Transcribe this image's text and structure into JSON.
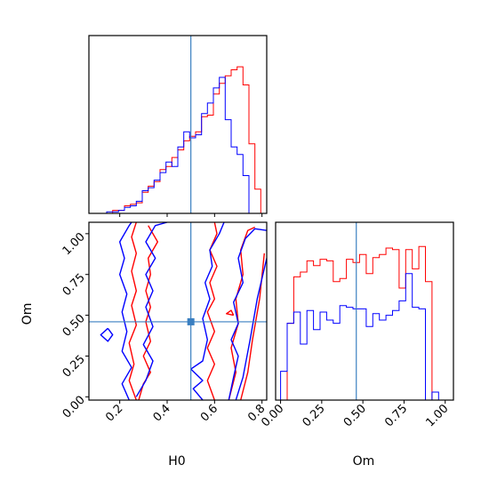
{
  "chart_data": {
    "type": "corner",
    "parameters": [
      "H0",
      "Om"
    ],
    "truth": {
      "H0": 0.5,
      "Om": 0.46
    },
    "colors": {
      "series_a": "#ff0000",
      "series_b": "#0000ff",
      "truth": "#3a7fc1"
    },
    "panels": [
      {
        "id": "hist-H0",
        "type": "step-histogram",
        "xlim": [
          0.07,
          0.82
        ],
        "bin_edges": [
          0.07,
          0.095,
          0.12,
          0.145,
          0.17,
          0.195,
          0.22,
          0.245,
          0.27,
          0.295,
          0.32,
          0.345,
          0.37,
          0.395,
          0.42,
          0.445,
          0.47,
          0.495,
          0.52,
          0.545,
          0.57,
          0.595,
          0.62,
          0.645,
          0.67,
          0.695,
          0.72,
          0.745,
          0.77,
          0.795,
          0.82
        ],
        "series": [
          {
            "color": "red",
            "values": [
              0.0,
              0.0,
              0.0,
              0.0,
              0.02,
              0.02,
              0.05,
              0.06,
              0.07,
              0.14,
              0.18,
              0.21,
              0.29,
              0.31,
              0.37,
              0.42,
              0.48,
              0.51,
              0.54,
              0.64,
              0.65,
              0.79,
              0.86,
              0.91,
              0.95,
              0.97,
              0.85,
              0.46,
              0.16,
              0.0
            ]
          },
          {
            "color": "blue",
            "values": [
              0.0,
              0.0,
              0.0,
              0.01,
              0.01,
              0.02,
              0.04,
              0.05,
              0.08,
              0.15,
              0.17,
              0.22,
              0.27,
              0.34,
              0.31,
              0.44,
              0.54,
              0.5,
              0.52,
              0.66,
              0.73,
              0.83,
              0.9,
              0.62,
              0.44,
              0.39,
              0.25,
              0.0,
              0.0,
              0.0
            ]
          }
        ]
      },
      {
        "id": "hist-Om",
        "type": "step-histogram",
        "xlim": [
          -0.03,
          1.05
        ],
        "bin_edges": [
          -0.03,
          0.0,
          0.04,
          0.08,
          0.12,
          0.16,
          0.2,
          0.24,
          0.28,
          0.32,
          0.36,
          0.4,
          0.44,
          0.48,
          0.52,
          0.56,
          0.6,
          0.64,
          0.68,
          0.72,
          0.76,
          0.8,
          0.84,
          0.88,
          0.92,
          0.96,
          1.0,
          1.05
        ],
        "series": [
          {
            "color": "red",
            "values": [
              0.0,
              0.0,
              0.48,
              0.77,
              0.8,
              0.87,
              0.84,
              0.88,
              0.87,
              0.74,
              0.76,
              0.88,
              0.86,
              0.91,
              0.79,
              0.89,
              0.91,
              0.95,
              0.94,
              0.7,
              0.94,
              0.82,
              0.96,
              0.74,
              0.0,
              0.0,
              0.0
            ]
          },
          {
            "color": "blue",
            "values": [
              0.0,
              0.18,
              0.48,
              0.55,
              0.35,
              0.56,
              0.44,
              0.55,
              0.5,
              0.48,
              0.59,
              0.58,
              0.57,
              0.57,
              0.46,
              0.54,
              0.5,
              0.53,
              0.56,
              0.62,
              0.79,
              0.58,
              0.57,
              0.0,
              0.05,
              0.0,
              0.0
            ]
          }
        ]
      },
      {
        "id": "contour-H0-Om",
        "type": "contour",
        "xlim": [
          0.07,
          0.82
        ],
        "ylim": [
          -0.02,
          1.07
        ],
        "series": [
          {
            "color": "red",
            "paths": [
              [
                [
                  0.28,
                  -0.02
                ],
                [
                  0.3,
                  0.08
                ],
                [
                  0.33,
                  0.15
                ],
                [
                  0.3,
                  0.25
                ],
                [
                  0.33,
                  0.34
                ],
                [
                  0.31,
                  0.46
                ],
                [
                  0.33,
                  0.55
                ],
                [
                  0.31,
                  0.65
                ],
                [
                  0.33,
                  0.75
                ],
                [
                  0.32,
                  0.85
                ],
                [
                  0.36,
                  0.95
                ],
                [
                  0.32,
                  1.05
                ]
              ],
              [
                [
                  0.27,
                  -0.02
                ],
                [
                  0.24,
                  0.1
                ],
                [
                  0.26,
                  0.2
                ],
                [
                  0.24,
                  0.33
                ],
                [
                  0.27,
                  0.44
                ],
                [
                  0.25,
                  0.56
                ],
                [
                  0.27,
                  0.65
                ],
                [
                  0.25,
                  0.77
                ],
                [
                  0.27,
                  0.88
                ],
                [
                  0.25,
                  0.98
                ],
                [
                  0.27,
                  1.07
                ]
              ],
              [
                [
                  0.6,
                  -0.02
                ],
                [
                  0.57,
                  0.1
                ],
                [
                  0.6,
                  0.2
                ],
                [
                  0.57,
                  0.3
                ],
                [
                  0.6,
                  0.4
                ],
                [
                  0.57,
                  0.52
                ],
                [
                  0.6,
                  0.6
                ],
                [
                  0.58,
                  0.7
                ],
                [
                  0.61,
                  0.8
                ],
                [
                  0.58,
                  0.9
                ],
                [
                  0.61,
                  1.0
                ],
                [
                  0.6,
                  1.07
                ]
              ],
              [
                [
                  0.66,
                  -0.02
                ],
                [
                  0.69,
                  0.15
                ],
                [
                  0.67,
                  0.3
                ],
                [
                  0.7,
                  0.45
                ],
                [
                  0.69,
                  0.6
                ],
                [
                  0.72,
                  0.75
                ],
                [
                  0.71,
                  0.9
                ],
                [
                  0.74,
                  1.02
                ],
                [
                  0.77,
                  1.04
                ]
              ],
              [
                [
                  0.71,
                  -0.02
                ],
                [
                  0.74,
                  0.15
                ],
                [
                  0.76,
                  0.35
                ],
                [
                  0.79,
                  0.6
                ],
                [
                  0.81,
                  0.88
                ]
              ],
              [
                [
                  0.68,
                  0.5
                ],
                [
                  0.67,
                  0.53
                ],
                [
                  0.65,
                  0.51
                ],
                [
                  0.68,
                  0.5
                ]
              ]
            ]
          },
          {
            "color": "blue",
            "paths": [
              [
                [
                  0.24,
                  -0.02
                ],
                [
                  0.21,
                  0.08
                ],
                [
                  0.25,
                  0.18
                ],
                [
                  0.21,
                  0.28
                ],
                [
                  0.23,
                  0.4
                ],
                [
                  0.21,
                  0.52
                ],
                [
                  0.23,
                  0.63
                ],
                [
                  0.2,
                  0.75
                ],
                [
                  0.22,
                  0.85
                ],
                [
                  0.2,
                  0.95
                ],
                [
                  0.24,
                  1.05
                ],
                [
                  0.25,
                  1.07
                ]
              ],
              [
                [
                  0.27,
                  0.0
                ],
                [
                  0.31,
                  0.1
                ],
                [
                  0.34,
                  0.22
                ],
                [
                  0.3,
                  0.32
                ],
                [
                  0.34,
                  0.43
                ],
                [
                  0.31,
                  0.55
                ],
                [
                  0.34,
                  0.65
                ],
                [
                  0.31,
                  0.75
                ],
                [
                  0.35,
                  0.85
                ],
                [
                  0.31,
                  0.95
                ],
                [
                  0.35,
                  1.05
                ],
                [
                  0.4,
                  1.07
                ]
              ],
              [
                [
                  0.15,
                  0.42
                ],
                [
                  0.12,
                  0.38
                ],
                [
                  0.15,
                  0.34
                ],
                [
                  0.17,
                  0.38
                ],
                [
                  0.15,
                  0.42
                ]
              ],
              [
                [
                  0.55,
                  -0.02
                ],
                [
                  0.51,
                  0.05
                ],
                [
                  0.55,
                  0.1
                ],
                [
                  0.5,
                  0.17
                ],
                [
                  0.55,
                  0.22
                ],
                [
                  0.57,
                  0.35
                ],
                [
                  0.55,
                  0.48
                ],
                [
                  0.58,
                  0.6
                ],
                [
                  0.56,
                  0.7
                ],
                [
                  0.59,
                  0.8
                ],
                [
                  0.58,
                  0.9
                ],
                [
                  0.62,
                  1.0
                ],
                [
                  0.64,
                  1.07
                ]
              ],
              [
                [
                  0.66,
                  -0.02
                ],
                [
                  0.68,
                  0.12
                ],
                [
                  0.7,
                  0.25
                ],
                [
                  0.67,
                  0.35
                ],
                [
                  0.7,
                  0.45
                ],
                [
                  0.68,
                  0.58
                ],
                [
                  0.72,
                  0.7
                ],
                [
                  0.7,
                  0.85
                ],
                [
                  0.73,
                  0.97
                ],
                [
                  0.77,
                  1.03
                ],
                [
                  0.82,
                  1.02
                ]
              ],
              [
                [
                  0.69,
                  -0.02
                ],
                [
                  0.72,
                  0.12
                ],
                [
                  0.75,
                  0.35
                ],
                [
                  0.78,
                  0.6
                ],
                [
                  0.82,
                  0.85
                ]
              ]
            ]
          }
        ]
      }
    ],
    "axes": {
      "H0": {
        "label": "H0",
        "ticks": [
          0.2,
          0.4,
          0.6,
          0.8
        ],
        "tick_labels": [
          "0.2",
          "0.4",
          "0.6",
          "0.8"
        ]
      },
      "Om": {
        "label": "Om",
        "ticks": [
          0.0,
          0.25,
          0.5,
          0.75,
          1.0
        ],
        "tick_labels": [
          "0.00",
          "0.25",
          "0.50",
          "0.75",
          "1.00"
        ]
      }
    }
  }
}
